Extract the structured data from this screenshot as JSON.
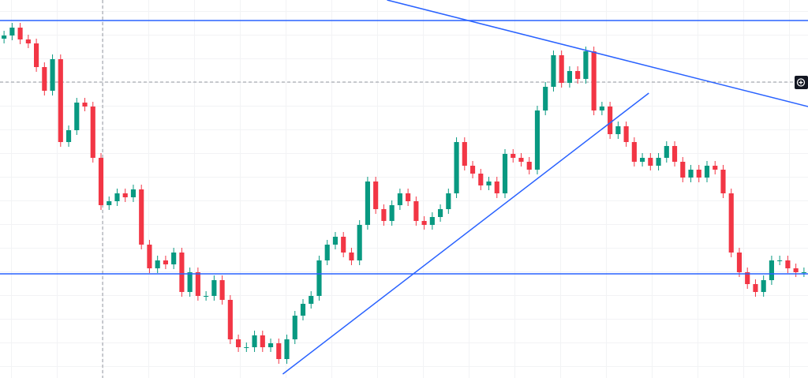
{
  "chart_data": {
    "type": "candlestick",
    "up_color": "#089981",
    "down_color": "#f23645",
    "line_color": "#2962ff",
    "xlim": [
      -0.5,
      99.5
    ],
    "ylim": [
      0,
      479
    ],
    "open": [
      430,
      434,
      444,
      429,
      424,
      394,
      364,
      404,
      299,
      314,
      349,
      344,
      279,
      219,
      224,
      234,
      229,
      239,
      169,
      139,
      149,
      144,
      159,
      109,
      134,
      104,
      104,
      124,
      99,
      49,
      39,
      39,
      54,
      39,
      44,
      24,
      49,
      79,
      94,
      104,
      149,
      169,
      179,
      159,
      149,
      194,
      249,
      214,
      199,
      219,
      234,
      224,
      199,
      194,
      204,
      214,
      234,
      299,
      269,
      259,
      244,
      249,
      234,
      284,
      279,
      274,
      264,
      339,
      369,
      409,
      374,
      389,
      379,
      414,
      339,
      344,
      309,
      319,
      299,
      274,
      279,
      269,
      279,
      294,
      274,
      254,
      264,
      254,
      269,
      264,
      234,
      159,
      134,
      119,
      109,
      124,
      149,
      149,
      139,
      134
    ],
    "high": [
      440,
      450,
      450,
      435,
      430,
      400,
      410,
      410,
      320,
      355,
      355,
      350,
      285,
      230,
      240,
      240,
      245,
      245,
      175,
      155,
      155,
      165,
      165,
      140,
      140,
      110,
      130,
      130,
      105,
      55,
      45,
      60,
      60,
      50,
      50,
      55,
      85,
      100,
      110,
      155,
      175,
      185,
      185,
      165,
      200,
      255,
      255,
      220,
      225,
      240,
      240,
      230,
      205,
      210,
      220,
      240,
      305,
      305,
      275,
      265,
      255,
      255,
      290,
      290,
      285,
      280,
      345,
      375,
      415,
      415,
      395,
      395,
      420,
      420,
      350,
      350,
      325,
      325,
      305,
      285,
      285,
      285,
      300,
      300,
      280,
      270,
      270,
      275,
      275,
      270,
      240,
      165,
      140,
      125,
      130,
      155,
      155,
      155,
      145,
      140
    ],
    "low": [
      424,
      428,
      423,
      418,
      388,
      358,
      358,
      293,
      293,
      308,
      338,
      273,
      213,
      213,
      218,
      223,
      223,
      163,
      133,
      133,
      138,
      138,
      103,
      103,
      98,
      98,
      98,
      93,
      43,
      33,
      33,
      33,
      33,
      33,
      18,
      18,
      43,
      73,
      88,
      98,
      143,
      163,
      153,
      143,
      143,
      188,
      208,
      193,
      193,
      213,
      218,
      193,
      188,
      188,
      198,
      208,
      228,
      263,
      253,
      238,
      238,
      228,
      228,
      273,
      268,
      258,
      258,
      333,
      363,
      368,
      368,
      373,
      373,
      333,
      333,
      303,
      303,
      293,
      268,
      268,
      263,
      263,
      273,
      268,
      248,
      248,
      248,
      248,
      258,
      228,
      153,
      128,
      113,
      103,
      103,
      118,
      143,
      133,
      128,
      128
    ],
    "close": [
      434,
      444,
      429,
      424,
      394,
      364,
      404,
      299,
      314,
      349,
      344,
      279,
      219,
      224,
      234,
      229,
      239,
      169,
      139,
      149,
      144,
      159,
      109,
      134,
      104,
      104,
      124,
      99,
      49,
      39,
      39,
      54,
      39,
      44,
      24,
      49,
      79,
      94,
      104,
      149,
      169,
      179,
      159,
      149,
      194,
      249,
      214,
      199,
      219,
      234,
      224,
      199,
      194,
      204,
      214,
      234,
      299,
      269,
      259,
      244,
      249,
      234,
      284,
      279,
      274,
      264,
      339,
      369,
      409,
      374,
      389,
      379,
      414,
      339,
      344,
      309,
      319,
      299,
      274,
      279,
      269,
      279,
      294,
      274,
      254,
      264,
      254,
      269,
      264,
      234,
      159,
      134,
      119,
      109,
      124,
      149,
      149,
      139,
      134,
      134
    ],
    "hlines": [
      453,
      132
    ],
    "trendlines": [
      [
        [
          47.4,
          479
        ],
        [
          99.5,
          344
        ]
      ],
      [
        [
          34.5,
          5
        ],
        [
          79.8,
          361
        ]
      ]
    ],
    "crosshair": {
      "x": 12.2,
      "y": 375
    }
  }
}
